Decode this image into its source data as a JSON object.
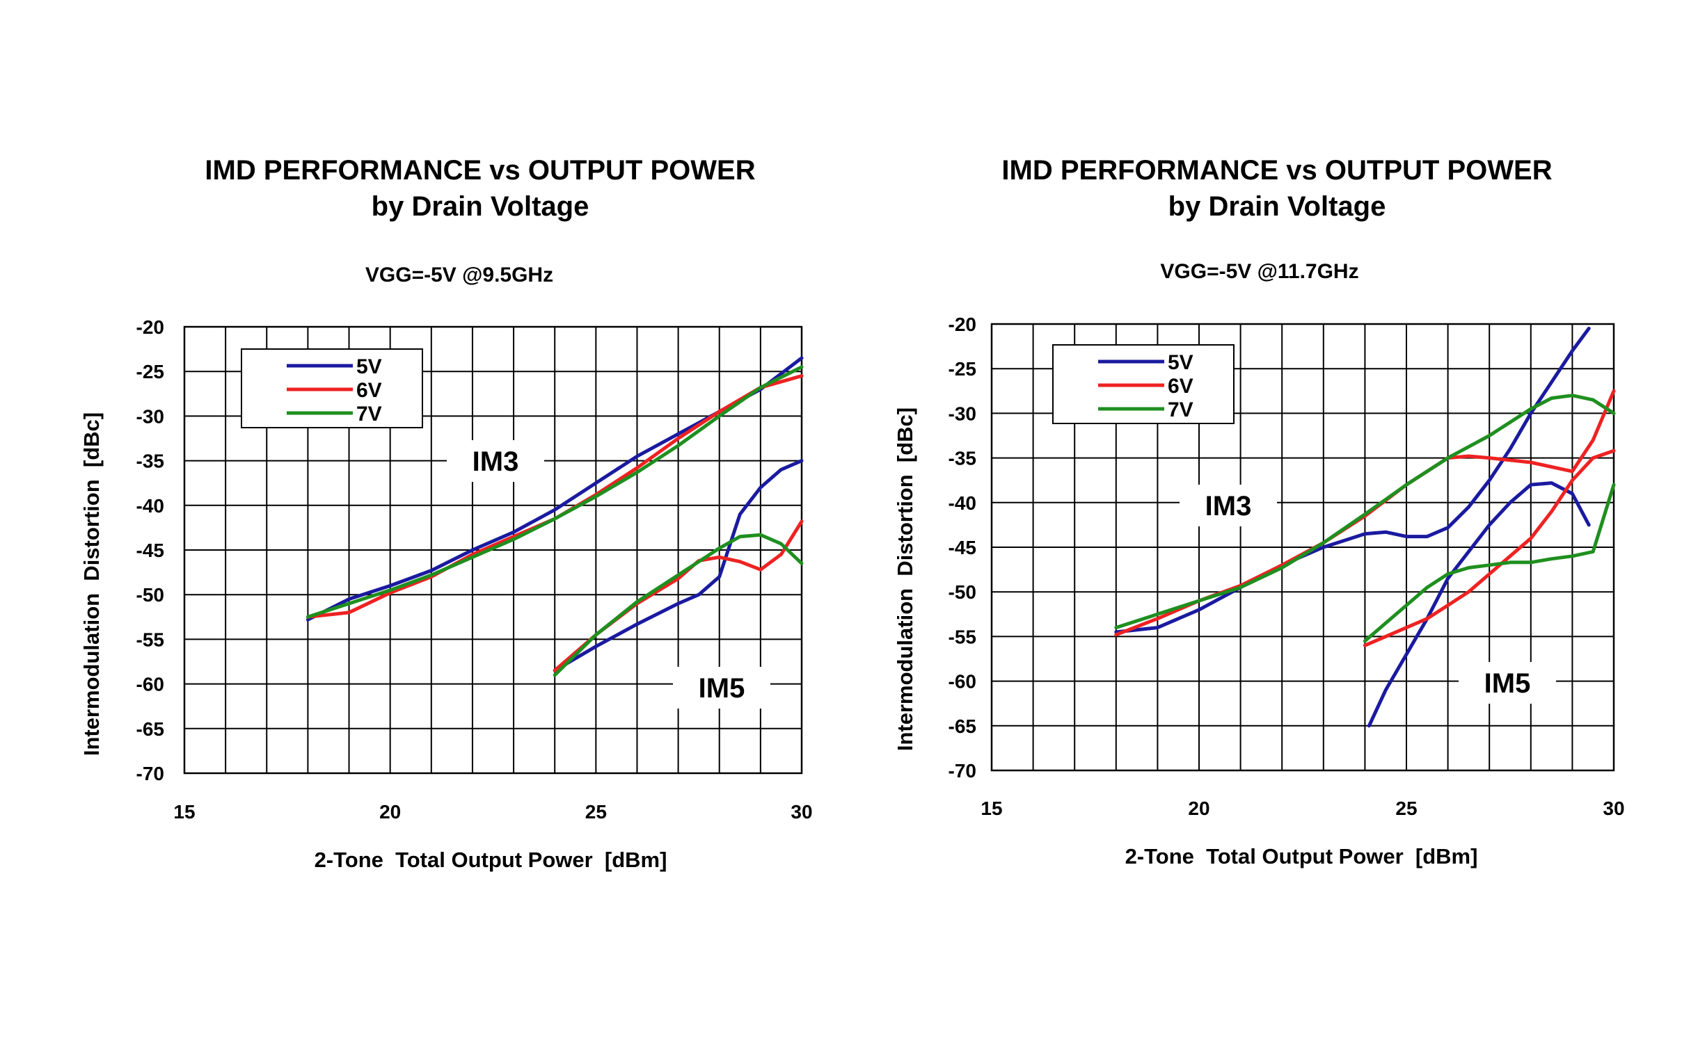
{
  "series_colors": {
    "5V": "#1a1aa0",
    "6V": "#ee2222",
    "7V": "#1f8f1f"
  },
  "chart_data": [
    {
      "type": "line",
      "title": "IMD PERFORMANCE vs OUTPUT POWER",
      "title_line2": "by Drain Voltage",
      "subtitle": "VGG=-5V @9.5GHz",
      "xlabel": "2-Tone  Total Output Power  [dBm]",
      "ylabel": "Intermodulation  Distortion  [dBc]",
      "xlim": [
        15,
        30
      ],
      "ylim": [
        -70,
        -20
      ],
      "xticks": [
        15,
        20,
        25,
        30
      ],
      "yticks": [
        -20,
        -25,
        -30,
        -35,
        -40,
        -45,
        -50,
        -55,
        -60,
        -65,
        -70
      ],
      "grid": true,
      "legend": [
        "5V",
        "6V",
        "7V"
      ],
      "legend_position": "top-left",
      "annotations": [
        "IM3",
        "IM5"
      ],
      "series": [
        {
          "name": "5V",
          "group": "IM3",
          "x": [
            18,
            19,
            20,
            21,
            22,
            23,
            24,
            25,
            26,
            27,
            28,
            29,
            30
          ],
          "y": [
            -52.8,
            -50.5,
            -49.0,
            -47.3,
            -45.0,
            -43.0,
            -40.5,
            -37.5,
            -34.5,
            -32.0,
            -29.5,
            -27.0,
            -23.5
          ]
        },
        {
          "name": "6V",
          "group": "IM3",
          "x": [
            18,
            19,
            20,
            21,
            22,
            23,
            24,
            25,
            26,
            27,
            28,
            29,
            30
          ],
          "y": [
            -52.5,
            -52.0,
            -49.8,
            -48.0,
            -45.5,
            -43.5,
            -41.5,
            -38.8,
            -35.8,
            -32.5,
            -29.5,
            -26.8,
            -25.5
          ]
        },
        {
          "name": "7V",
          "group": "IM3",
          "x": [
            18,
            19,
            20,
            21,
            22,
            23,
            24,
            25,
            26,
            27,
            28,
            29,
            30
          ],
          "y": [
            -52.5,
            -51.0,
            -49.5,
            -47.8,
            -45.8,
            -43.8,
            -41.5,
            -39.0,
            -36.3,
            -33.3,
            -30.0,
            -26.8,
            -24.5
          ]
        },
        {
          "name": "5V",
          "group": "IM5",
          "x": [
            24,
            25,
            26,
            27,
            27.5,
            28,
            28.5,
            29,
            29.5,
            30
          ],
          "y": [
            -58.5,
            -55.8,
            -53.3,
            -51.0,
            -50.0,
            -48.0,
            -41.0,
            -38.0,
            -36.0,
            -35.0
          ]
        },
        {
          "name": "6V",
          "group": "IM5",
          "x": [
            24,
            25,
            26,
            27,
            27.5,
            28,
            28.5,
            29,
            29.5,
            30
          ],
          "y": [
            -58.5,
            -54.5,
            -51.0,
            -48.2,
            -46.2,
            -45.8,
            -46.3,
            -47.2,
            -45.5,
            -41.8
          ]
        },
        {
          "name": "7V",
          "group": "IM5",
          "x": [
            24,
            25,
            26,
            27,
            27.5,
            28,
            28.5,
            29,
            29.5,
            30
          ],
          "y": [
            -59.0,
            -54.5,
            -50.8,
            -47.8,
            -46.3,
            -44.8,
            -43.5,
            -43.3,
            -44.3,
            -46.5
          ]
        }
      ]
    },
    {
      "type": "line",
      "title": "IMD PERFORMANCE vs OUTPUT POWER",
      "title_line2": "by Drain Voltage",
      "subtitle": "VGG=-5V @11.7GHz",
      "xlabel": "2-Tone  Total Output Power  [dBm]",
      "ylabel": "Intermodulation  Distortion  [dBc]",
      "xlim": [
        15,
        30
      ],
      "ylim": [
        -70,
        -20
      ],
      "xticks": [
        15,
        20,
        25,
        30
      ],
      "yticks": [
        -20,
        -25,
        -30,
        -35,
        -40,
        -45,
        -50,
        -55,
        -60,
        -65,
        -70
      ],
      "grid": true,
      "legend": [
        "5V",
        "6V",
        "7V"
      ],
      "legend_position": "top-left",
      "annotations": [
        "IM3",
        "IM5"
      ],
      "series": [
        {
          "name": "5V",
          "group": "IM3",
          "x": [
            18,
            19,
            20,
            21,
            22,
            23,
            24,
            24.5,
            25,
            25.5,
            26,
            26.5,
            27,
            27.5,
            28,
            28.5,
            29,
            29.4
          ],
          "y": [
            -54.5,
            -54.0,
            -52.0,
            -49.5,
            -47.0,
            -45.0,
            -43.5,
            -43.3,
            -43.8,
            -43.8,
            -42.8,
            -40.5,
            -37.5,
            -34.0,
            -30.0,
            -26.5,
            -23.0,
            -20.5
          ]
        },
        {
          "name": "6V",
          "group": "IM3",
          "x": [
            18,
            19,
            20,
            21,
            22,
            23,
            24,
            25,
            26,
            26.5,
            27,
            28,
            29,
            29.5,
            30
          ],
          "y": [
            -54.8,
            -53.0,
            -51.0,
            -49.3,
            -47.0,
            -44.5,
            -41.5,
            -38.0,
            -35.0,
            -34.8,
            -35.0,
            -35.5,
            -36.5,
            -33.0,
            -27.5
          ]
        },
        {
          "name": "7V",
          "group": "IM3",
          "x": [
            18,
            19,
            20,
            21,
            22,
            23,
            24,
            25,
            26,
            27,
            28,
            28.5,
            29,
            29.5,
            30
          ],
          "y": [
            -54.0,
            -52.5,
            -51.0,
            -49.5,
            -47.3,
            -44.5,
            -41.3,
            -38.0,
            -35.0,
            -32.5,
            -29.5,
            -28.3,
            -28.0,
            -28.5,
            -30.0
          ]
        },
        {
          "name": "5V",
          "group": "IM5",
          "x": [
            24.1,
            24.5,
            25,
            25.5,
            26,
            26.5,
            27,
            27.5,
            28,
            28.5,
            29,
            29.4
          ],
          "y": [
            -65.0,
            -61.0,
            -57.0,
            -53.0,
            -48.5,
            -45.5,
            -42.5,
            -40.0,
            -38.0,
            -37.8,
            -39.0,
            -42.5
          ]
        },
        {
          "name": "6V",
          "group": "IM5",
          "x": [
            24,
            24.5,
            25,
            25.5,
            26,
            26.5,
            27,
            27.5,
            28,
            28.5,
            29,
            29.5,
            30
          ],
          "y": [
            -56.0,
            -55.0,
            -54.0,
            -53.0,
            -51.5,
            -50.0,
            -48.0,
            -46.0,
            -44.0,
            -41.0,
            -37.5,
            -35.0,
            -34.2
          ]
        },
        {
          "name": "7V",
          "group": "IM5",
          "x": [
            24,
            24.5,
            25,
            25.5,
            26,
            26.5,
            27,
            27.5,
            28,
            28.5,
            29,
            29.5,
            30
          ],
          "y": [
            -55.5,
            -53.5,
            -51.5,
            -49.5,
            -48.0,
            -47.3,
            -47.0,
            -46.7,
            -46.7,
            -46.3,
            -46.0,
            -45.5,
            -38.0
          ]
        }
      ]
    }
  ]
}
